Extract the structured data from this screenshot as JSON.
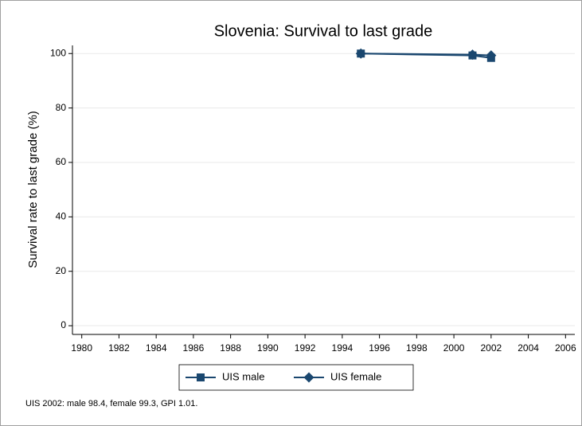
{
  "chart_data": {
    "type": "line",
    "title": "Slovenia: Survival to last grade",
    "y_label": "Survival rate to last grade (%)",
    "note": "UIS 2002: male 98.4, female 99.3, GPI 1.01.",
    "x": [
      1995,
      2001,
      2002
    ],
    "series": [
      {
        "name": "UIS male",
        "color": "#1a476f",
        "marker": "square",
        "values": [
          100,
          99.3,
          98.4
        ]
      },
      {
        "name": "UIS female",
        "color": "#1a476f",
        "marker": "diamond",
        "values": [
          100,
          99.6,
          99.3
        ]
      }
    ],
    "xlim": [
      1979.5,
      2006.5
    ],
    "xticks": [
      1980,
      1982,
      1984,
      1986,
      1988,
      1990,
      1992,
      1994,
      1996,
      1998,
      2000,
      2002,
      2004,
      2006
    ],
    "ylim": [
      -3.2,
      103
    ],
    "yticks": [
      0,
      20,
      40,
      60,
      80,
      100
    ],
    "grid": true,
    "legend_position": "bottom"
  }
}
